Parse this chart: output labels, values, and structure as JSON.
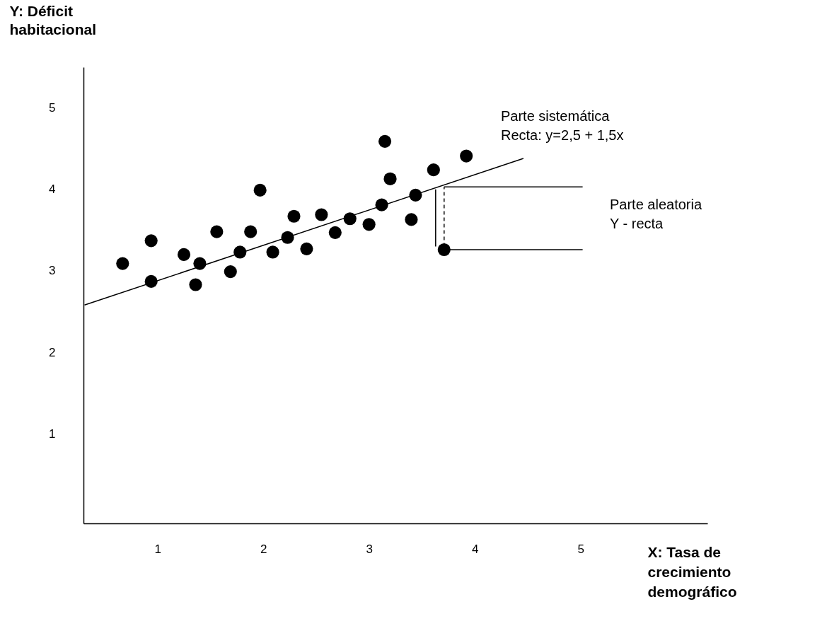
{
  "chart_data": {
    "type": "scatter",
    "xlabel": "X: Tasa de\ncrecimiento\ndemográfico",
    "ylabel": "Y: Déficit\nhabitacional",
    "xlim": [
      0.3,
      6.2
    ],
    "ylim": [
      -0.1,
      5.5
    ],
    "xticks": [
      1,
      2,
      3,
      4,
      5
    ],
    "yticks": [
      1,
      2,
      3,
      4,
      5
    ],
    "grid": false,
    "marker": "circle",
    "series": [
      {
        "color": "#000000",
        "x": [
          0.67,
          0.94,
          0.94,
          1.25,
          1.4,
          1.36,
          1.56,
          1.69,
          1.78,
          1.88,
          1.97,
          2.09,
          2.23,
          2.29,
          2.41,
          2.55,
          2.68,
          2.82,
          3.0,
          3.12,
          3.15,
          3.2,
          3.4,
          3.44,
          3.61,
          3.71,
          3.92
        ],
        "values": [
          3.09,
          2.87,
          3.37,
          3.2,
          3.09,
          2.83,
          3.48,
          2.99,
          3.23,
          3.48,
          3.99,
          3.23,
          3.41,
          3.67,
          3.27,
          3.69,
          3.47,
          3.64,
          3.57,
          3.81,
          4.59,
          4.13,
          3.63,
          3.93,
          4.24,
          3.26,
          4.41
        ]
      },
      {
        "type": "line",
        "marker": "none",
        "line_style": "solid",
        "color": "#000000",
        "x": [
          0.31,
          4.46
        ],
        "values": [
          2.58,
          4.38
        ]
      },
      {
        "type": "line",
        "marker": "none",
        "line_style": "solid",
        "color": "#000000",
        "x": [
          3.71,
          5.02
        ],
        "values": [
          4.03,
          4.03
        ]
      },
      {
        "type": "line",
        "marker": "none",
        "line_style": "solid",
        "color": "#000000",
        "x": [
          3.71,
          5.02
        ],
        "values": [
          3.26,
          3.26
        ]
      },
      {
        "type": "line",
        "marker": "none",
        "line_style": "solid",
        "color": "#000000",
        "x": [
          3.63,
          3.63
        ],
        "values": [
          3.3,
          4.0
        ]
      },
      {
        "type": "line",
        "marker": "none",
        "line_style": "dashed",
        "color": "#000000",
        "x": [
          3.71,
          3.71
        ],
        "values": [
          3.3,
          4.03
        ]
      }
    ],
    "annotations": [
      "Parte sistemática\nRecta: y=2,5 + 1,5x",
      "Parte aleatoria\nY - recta"
    ]
  }
}
